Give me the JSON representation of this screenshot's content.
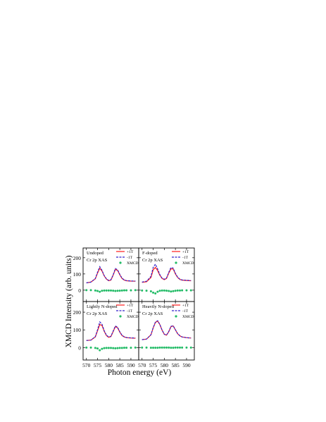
{
  "figure": {
    "ylabel": "XMCD Intensity (arb. units)",
    "xlabel": "Photon energy (eV)",
    "xlim": [
      568.5,
      593.5
    ],
    "ylim": [
      -70,
      260
    ],
    "xticks": [
      570,
      575,
      580,
      585,
      590
    ],
    "yticks": [
      0,
      100,
      200
    ]
  },
  "legend": {
    "plus": "+1T",
    "minus": "-1T",
    "xmcd": "XMCD"
  },
  "colors": {
    "plus": "#ff1a1a",
    "minus": "#3322cc",
    "xmcd": "#22bb66",
    "frame": "#000000"
  },
  "panels": [
    {
      "sample": "Undoped",
      "edge": "Cr 2p XAS"
    },
    {
      "sample": "F-doped",
      "edge": "Cr 2p XAS"
    },
    {
      "sample": "Lightly N-doped",
      "edge": "Cr 2p XAS"
    },
    {
      "sample": "Heavily N-doped",
      "edge": "Cr 2p XAS"
    }
  ],
  "chart_data": [
    {
      "type": "line",
      "panel": "Undoped",
      "x": [
        570,
        572,
        574,
        575,
        576,
        577,
        578,
        579,
        580,
        581,
        582,
        583,
        584,
        585,
        586,
        587,
        588,
        590,
        592
      ],
      "series": [
        {
          "name": "+1T",
          "values": [
            45,
            50,
            70,
            105,
            135,
            118,
            88,
            68,
            58,
            62,
            92,
            128,
            122,
            95,
            72,
            62,
            58,
            56,
            55
          ]
        },
        {
          "name": "-1T",
          "values": [
            45,
            50,
            72,
            110,
            145,
            122,
            90,
            70,
            60,
            64,
            95,
            133,
            126,
            98,
            74,
            63,
            59,
            57,
            56
          ]
        },
        {
          "name": "XMCD",
          "values": [
            0,
            0,
            -2,
            -5,
            -10,
            -4,
            -2,
            -2,
            -2,
            -2,
            -3,
            -5,
            -4,
            -3,
            -2,
            -1,
            -1,
            -1,
            0
          ]
        }
      ]
    },
    {
      "type": "line",
      "panel": "F-doped",
      "x": [
        570,
        572,
        574,
        575,
        576,
        577,
        578,
        579,
        580,
        581,
        582,
        583,
        584,
        585,
        586,
        587,
        588,
        590,
        592
      ],
      "series": [
        {
          "name": "+1T",
          "values": [
            48,
            52,
            78,
            125,
            140,
            120,
            92,
            72,
            65,
            72,
            105,
            132,
            130,
            100,
            78,
            66,
            62,
            60,
            58
          ]
        },
        {
          "name": "-1T",
          "values": [
            50,
            55,
            85,
            140,
            160,
            130,
            96,
            74,
            67,
            75,
            110,
            140,
            136,
            104,
            80,
            68,
            63,
            61,
            59
          ]
        },
        {
          "name": "XMCD",
          "values": [
            -2,
            -3,
            -7,
            -15,
            -20,
            -10,
            -4,
            -2,
            -2,
            -3,
            -5,
            -8,
            -6,
            -4,
            -2,
            -2,
            -1,
            -1,
            -1
          ]
        }
      ]
    },
    {
      "type": "line",
      "panel": "Lightly N-doped",
      "x": [
        570,
        572,
        574,
        575,
        576,
        577,
        578,
        579,
        580,
        581,
        582,
        583,
        584,
        585,
        586,
        587,
        588,
        590,
        592
      ],
      "series": [
        {
          "name": "+1T",
          "values": [
            40,
            42,
            60,
            95,
            130,
            125,
            92,
            68,
            58,
            62,
            90,
            118,
            112,
            88,
            68,
            60,
            56,
            54,
            53
          ]
        },
        {
          "name": "-1T",
          "values": [
            40,
            42,
            62,
            100,
            145,
            132,
            95,
            70,
            60,
            64,
            93,
            122,
            115,
            90,
            70,
            61,
            57,
            55,
            54
          ]
        },
        {
          "name": "XMCD",
          "values": [
            0,
            0,
            -2,
            -5,
            -15,
            -7,
            -3,
            -2,
            -2,
            -2,
            -3,
            -4,
            -3,
            -2,
            -2,
            -1,
            -1,
            -1,
            0
          ]
        }
      ]
    },
    {
      "type": "line",
      "panel": "Heavily N-doped",
      "x": [
        570,
        572,
        574,
        575,
        576,
        577,
        578,
        579,
        580,
        581,
        582,
        583,
        584,
        585,
        586,
        587,
        588,
        590,
        592
      ],
      "series": [
        {
          "name": "+1T",
          "values": [
            45,
            48,
            72,
            110,
            142,
            150,
            130,
            98,
            75,
            70,
            90,
            118,
            122,
            100,
            78,
            66,
            60,
            56,
            54
          ]
        },
        {
          "name": "-1T",
          "values": [
            45,
            48,
            73,
            112,
            144,
            152,
            131,
            99,
            76,
            71,
            91,
            120,
            123,
            101,
            79,
            67,
            60,
            56,
            54
          ]
        },
        {
          "name": "XMCD",
          "values": [
            0,
            0,
            -1,
            -1,
            -1,
            -1,
            0,
            0,
            0,
            0,
            0,
            -1,
            -1,
            0,
            0,
            0,
            0,
            0,
            0
          ]
        }
      ]
    }
  ]
}
